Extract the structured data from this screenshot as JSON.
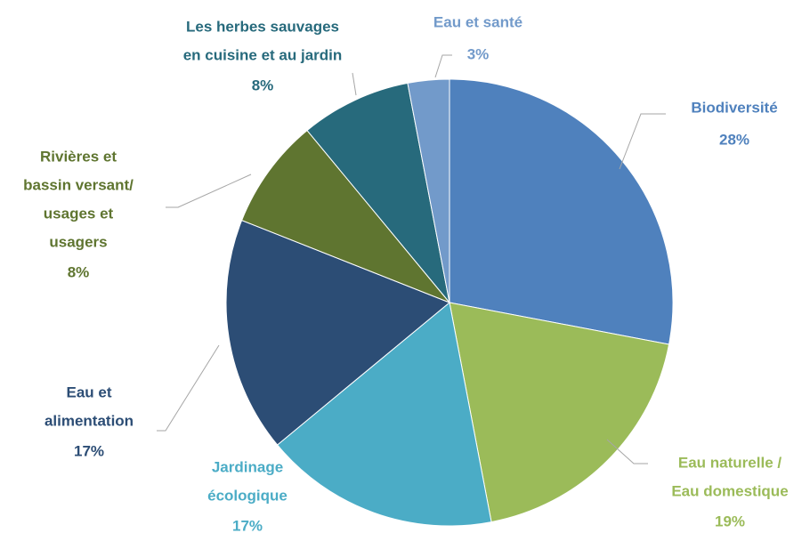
{
  "chart_data": {
    "type": "pie",
    "categories": [
      [
        "Biodiversité"
      ],
      [
        "Eau naturelle /",
        "Eau domestique"
      ],
      [
        "Jardinage",
        "écologique"
      ],
      [
        "Eau et",
        "alimentation"
      ],
      [
        "Rivières et",
        "bassin versant/",
        "usages et",
        "usagers"
      ],
      [
        "Les herbes sauvages",
        "en cuisine et au jardin"
      ],
      [
        "Eau et santé"
      ]
    ],
    "values": [
      28,
      19,
      17,
      17,
      8,
      8,
      3
    ],
    "value_labels": [
      "28%",
      "19%",
      "17%",
      "17%",
      "8%",
      "8%",
      "3%"
    ],
    "colors": [
      "#4f81bd",
      "#9bbb59",
      "#4bacc6",
      "#2c4d75",
      "#5f7530",
      "#276a7c",
      "#729aca"
    ]
  }
}
